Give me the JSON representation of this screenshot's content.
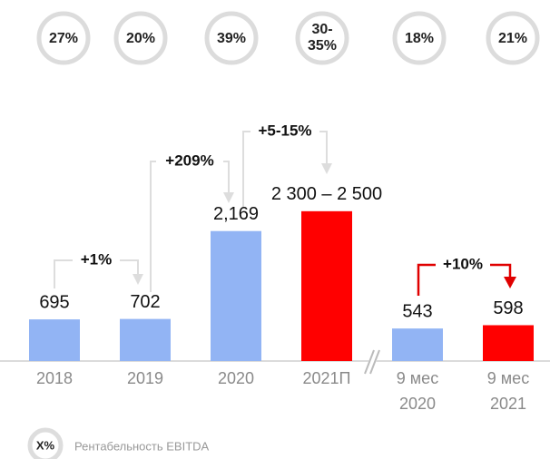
{
  "chart_data": {
    "type": "bar",
    "categories": [
      "2018",
      "2019",
      "2020",
      "2021П",
      "9 мес 2020",
      "9 мес 2021"
    ],
    "values": [
      695,
      702,
      2169,
      2500,
      543,
      598
    ],
    "value_labels": [
      "695",
      "702",
      "2,169",
      "2 300 – 2 500",
      "543",
      "598"
    ],
    "colors": [
      "#92b4f4",
      "#92b4f4",
      "#92b4f4",
      "#ff0000",
      "#92b4f4",
      "#ff0000"
    ],
    "ylim": [
      0,
      3300
    ],
    "margins": [
      "27%",
      "20%",
      "39%",
      [
        "30-",
        "35%"
      ],
      "18%",
      "21%"
    ],
    "growth": [
      "+1%",
      "+209%",
      "+5-15%",
      "+10%"
    ],
    "legend": {
      "symbol": "X%",
      "label": "Рентабельность EBITDA"
    }
  }
}
